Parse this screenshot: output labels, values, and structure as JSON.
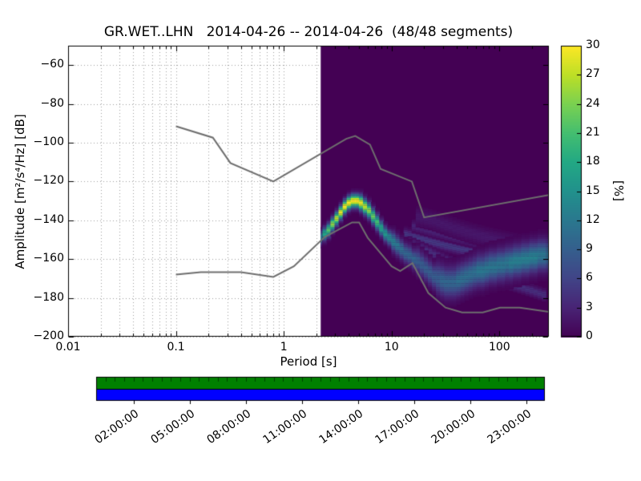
{
  "chart_data": {
    "type": "heatmap",
    "title": "GR.WET..LHN   2014-04-26 -- 2014-04-26  (48/48 segments)",
    "xlabel": "Period [s]",
    "ylabel": "Amplitude [m²/s⁴/Hz] [dB]",
    "colorbar_label": "[%]",
    "x_scale": "log",
    "xlim": [
      0.01,
      287
    ],
    "ylim": [
      -200,
      -50
    ],
    "x_ticks": [
      0.01,
      0.1,
      1,
      10,
      100
    ],
    "x_tick_labels": [
      "0.01",
      "0.1",
      "1",
      "10",
      "100"
    ],
    "y_ticks": [
      -200,
      -180,
      -160,
      -140,
      -120,
      -100,
      -80,
      -60
    ],
    "y_tick_labels": [
      "−200",
      "−180",
      "−160",
      "−140",
      "−120",
      "−100",
      "−80",
      "−60"
    ],
    "grid": "dotted",
    "colorbar": {
      "min": 0,
      "max": 30,
      "ticks": [
        0,
        3,
        6,
        9,
        12,
        15,
        18,
        21,
        24,
        27,
        30
      ],
      "colormap": "viridis",
      "colormap_stops": [
        [
          0,
          68,
          1,
          84
        ],
        [
          0.1,
          72,
          36,
          117
        ],
        [
          0.2,
          65,
          68,
          135
        ],
        [
          0.3,
          53,
          95,
          141
        ],
        [
          0.4,
          42,
          120,
          142
        ],
        [
          0.5,
          33,
          145,
          140
        ],
        [
          0.6,
          34,
          168,
          132
        ],
        [
          0.7,
          68,
          190,
          112
        ],
        [
          0.8,
          122,
          209,
          81
        ],
        [
          0.9,
          189,
          223,
          38
        ],
        [
          1,
          253,
          231,
          37
        ]
      ]
    },
    "data_region": {
      "period_min": 2.2,
      "period_max": 287
    },
    "pdf": {
      "periods": [
        2.2,
        2.4,
        2.62,
        2.85,
        3.11,
        3.39,
        3.7,
        4.03,
        4.4,
        4.8,
        5.23,
        5.7,
        6.22,
        6.78,
        7.4,
        8.07,
        8.8,
        9.59,
        10.46,
        11.41,
        12.44,
        13.57,
        14.8,
        16.14,
        17.6,
        19.19,
        20.93,
        22.82,
        24.89,
        27.14,
        29.6,
        32.28,
        35.2,
        38.39,
        41.87,
        45.66,
        49.79,
        54.3,
        59.21,
        64.57,
        70.42,
        76.79,
        83.74,
        91.32,
        99.59,
        108.6,
        118.4,
        129.1,
        140.8,
        153.6,
        167.5,
        182.6,
        199.2,
        217.2,
        236.9,
        258.3,
        281.7
      ],
      "mode_db": [
        -149,
        -147,
        -145,
        -142,
        -139,
        -136,
        -133,
        -131,
        -130,
        -130,
        -131,
        -133,
        -135,
        -138,
        -141,
        -144,
        -147,
        -149,
        -151,
        -153,
        -155,
        -157,
        -158,
        -160,
        -161,
        -163,
        -165,
        -167,
        -169,
        -170,
        -171,
        -172,
        -172,
        -172,
        -171,
        -170,
        -169,
        -168,
        -167,
        -166,
        -166,
        -165,
        -164,
        -164,
        -163,
        -163,
        -162,
        -162,
        -161,
        -161,
        -160,
        -160,
        -159,
        -159,
        -158,
        -158,
        -158
      ],
      "peak_pct": [
        14,
        18,
        22,
        25,
        27,
        29,
        30,
        30,
        30,
        30,
        29,
        27,
        25,
        23,
        21,
        18,
        16,
        14,
        13,
        12,
        11,
        10,
        10,
        10,
        9,
        9,
        9,
        9,
        9,
        9,
        10,
        10,
        10,
        10,
        11,
        11,
        11,
        11,
        11,
        12,
        12,
        12,
        12,
        12,
        12,
        12,
        12,
        13,
        13,
        13,
        13,
        13,
        13,
        13,
        12,
        12,
        12
      ],
      "sigma_db": [
        2.2,
        2.2,
        2.2,
        2.2,
        2.2,
        2.2,
        2.2,
        2.2,
        2.2,
        2.2,
        2.5,
        2.5,
        2.5,
        2.5,
        2.5,
        2.5,
        2.5,
        2.5,
        3.2,
        3.2,
        3.2,
        3.2,
        3.2,
        3.2,
        4,
        4,
        4,
        4,
        4,
        5,
        5,
        5,
        5,
        5,
        5,
        5,
        5,
        5,
        5,
        5,
        5,
        5,
        5,
        5,
        5,
        5,
        5,
        5,
        5,
        5,
        5,
        5,
        5,
        5,
        5,
        5,
        5
      ],
      "branches": [
        {
          "pct": 5,
          "sigma": 1.8,
          "points": [
            [
              13,
              -147
            ],
            [
              20,
              -150
            ],
            [
              32,
              -153
            ],
            [
              55,
              -156
            ],
            [
              95,
              -158
            ],
            [
              160,
              -160
            ],
            [
              281,
              -162
            ]
          ]
        },
        {
          "pct": 4,
          "sigma": 1.8,
          "points": [
            [
              14,
              -151
            ],
            [
              22,
              -156
            ],
            [
              36,
              -162
            ],
            [
              60,
              -167
            ],
            [
              100,
              -171
            ],
            [
              170,
              -175
            ],
            [
              281,
              -179
            ]
          ]
        },
        {
          "pct": 3,
          "sigma": 1.8,
          "points": [
            [
              16,
              -143
            ],
            [
              25,
              -146
            ],
            [
              40,
              -149
            ],
            [
              70,
              -152
            ],
            [
              120,
              -154
            ],
            [
              200,
              -156
            ],
            [
              281,
              -158
            ]
          ]
        },
        {
          "pct": 2,
          "sigma": 3,
          "points": [
            [
              17,
              -138
            ],
            [
              24,
              -140
            ],
            [
              34,
              -143
            ],
            [
              50,
              -146
            ],
            [
              80,
              -149
            ],
            [
              140,
              -152
            ],
            [
              281,
              -155
            ]
          ]
        }
      ]
    },
    "noise_models": {
      "color": "#6e6e6e",
      "nhnm": [
        [
          0.1,
          -91.5
        ],
        [
          0.22,
          -97.4
        ],
        [
          0.32,
          -110.5
        ],
        [
          0.8,
          -120.0
        ],
        [
          3.8,
          -98.0
        ],
        [
          4.6,
          -96.5
        ],
        [
          6.3,
          -101.0
        ],
        [
          7.9,
          -113.5
        ],
        [
          15.4,
          -120.0
        ],
        [
          20,
          -138.5
        ],
        [
          354.8,
          -126.0
        ]
      ],
      "nlnm": [
        [
          0.1,
          -168.0
        ],
        [
          0.17,
          -166.7
        ],
        [
          0.4,
          -166.7
        ],
        [
          0.8,
          -169.2
        ],
        [
          1.24,
          -163.7
        ],
        [
          2.4,
          -148.6
        ],
        [
          4.3,
          -141.1
        ],
        [
          5,
          -141.1
        ],
        [
          6,
          -149.0
        ],
        [
          10,
          -163.7
        ],
        [
          12,
          -166.2
        ],
        [
          15.6,
          -162.1
        ],
        [
          21.9,
          -177.5
        ],
        [
          31.6,
          -185.0
        ],
        [
          45,
          -187.5
        ],
        [
          70,
          -187.5
        ],
        [
          101,
          -185.0
        ],
        [
          154,
          -185.0
        ],
        [
          354.8,
          -187.9
        ]
      ]
    },
    "timeline": {
      "hours_span": [
        0,
        24
      ],
      "tick_hours": [
        2,
        5,
        8,
        11,
        14,
        17,
        20,
        23
      ],
      "tick_labels": [
        "02:00:00",
        "05:00:00",
        "08:00:00",
        "11:00:00",
        "14:00:00",
        "17:00:00",
        "20:00:00",
        "23:00:00"
      ],
      "segments": 48,
      "green_color": "#008000",
      "blue_color": "#0000ff"
    }
  }
}
